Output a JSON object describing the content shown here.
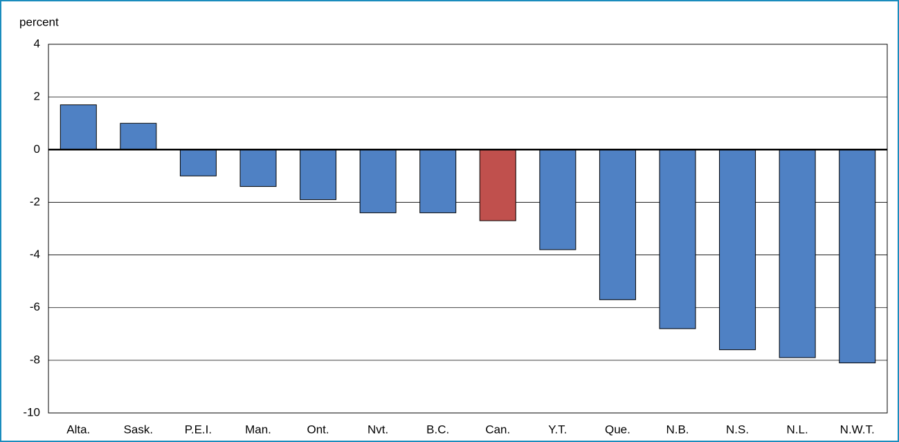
{
  "chart_data": {
    "type": "bar",
    "y_label": "percent",
    "categories": [
      "Alta.",
      "Sask.",
      "P.E.I.",
      "Man.",
      "Ont.",
      "Nvt.",
      "B.C.",
      "Can.",
      "Y.T.",
      "Que.",
      "N.B.",
      "N.S.",
      "N.L.",
      "N.W.T."
    ],
    "values": [
      1.7,
      1.0,
      -1.0,
      -1.4,
      -1.9,
      -2.4,
      -2.4,
      -2.7,
      -3.8,
      -5.7,
      -6.8,
      -7.6,
      -7.9,
      -8.1
    ],
    "colors": [
      "#4f81c4",
      "#4f81c4",
      "#4f81c4",
      "#4f81c4",
      "#4f81c4",
      "#4f81c4",
      "#4f81c4",
      "#c0504d",
      "#4f81c4",
      "#4f81c4",
      "#4f81c4",
      "#4f81c4",
      "#4f81c4",
      "#4f81c4"
    ],
    "ylim": [
      -10,
      4
    ],
    "yticks": [
      -10,
      -8,
      -6,
      -4,
      -2,
      0,
      2,
      4
    ],
    "grid": true
  }
}
